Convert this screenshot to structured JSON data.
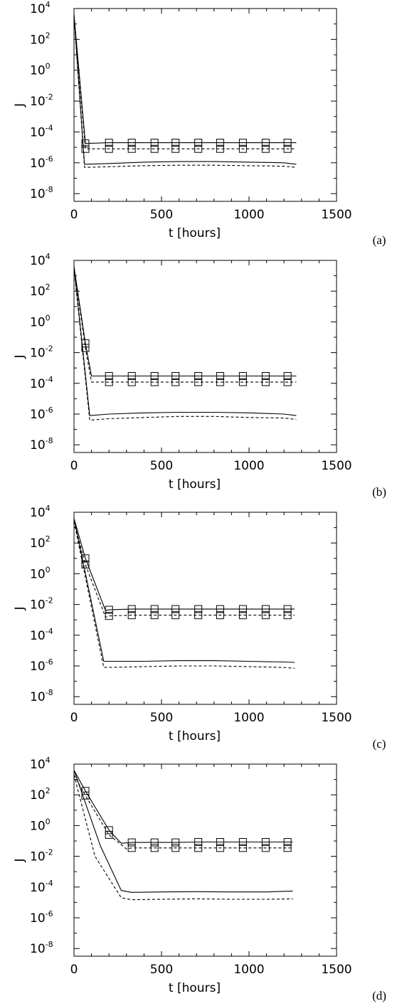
{
  "chart_data": [
    {
      "type": "line",
      "panel_label": "(a)",
      "xlabel": "t [hours]",
      "ylabel": "J",
      "xlim": [
        0,
        1500
      ],
      "ylim_log10": [
        -8.5,
        4
      ],
      "y_scale": "log",
      "xticks": [
        "0",
        "500",
        "1000",
        "1500"
      ],
      "yticks": [
        {
          "base": "10",
          "exp": "4"
        },
        {
          "base": "10",
          "exp": "2"
        },
        {
          "base": "10",
          "exp": "0"
        },
        {
          "base": "10",
          "exp": "-2"
        },
        {
          "base": "10",
          "exp": "-4"
        },
        {
          "base": "10",
          "exp": "-6"
        },
        {
          "base": "10",
          "exp": "-8"
        }
      ],
      "series": [
        {
          "style": "solid",
          "marker": "square",
          "x": [
            0,
            65,
            200,
            330,
            460,
            580,
            710,
            835,
            965,
            1095,
            1220,
            1270
          ],
          "y": [
            4000,
            1.8e-05,
            2e-05,
            2e-05,
            2e-05,
            2e-05,
            2e-05,
            2e-05,
            2e-05,
            2e-05,
            2e-05,
            2e-05
          ]
        },
        {
          "style": "dashed",
          "marker": "square",
          "x": [
            0,
            65,
            200,
            330,
            460,
            580,
            710,
            835,
            965,
            1095,
            1220,
            1270
          ],
          "y": [
            3000,
            8e-06,
            8e-06,
            8e-06,
            8e-06,
            8e-06,
            8e-06,
            8e-06,
            8e-06,
            8e-06,
            8e-06,
            8e-06
          ]
        },
        {
          "style": "solid",
          "marker": "none",
          "x": [
            0,
            60,
            200,
            400,
            600,
            800,
            1000,
            1200,
            1270
          ],
          "y": [
            4000,
            8e-07,
            9e-07,
            1.1e-06,
            1.2e-06,
            1.2e-06,
            1.1e-06,
            1e-06,
            8e-07
          ]
        },
        {
          "style": "dashed",
          "marker": "none",
          "x": [
            0,
            60,
            200,
            400,
            600,
            800,
            1000,
            1200,
            1270
          ],
          "y": [
            3000,
            5e-07,
            5.5e-07,
            6.5e-07,
            7e-07,
            7e-07,
            6.5e-07,
            6e-07,
            5e-07
          ]
        }
      ]
    },
    {
      "type": "line",
      "panel_label": "(b)",
      "xlabel": "t [hours]",
      "ylabel": "J",
      "xlim": [
        0,
        1500
      ],
      "ylim_log10": [
        -8.5,
        4
      ],
      "y_scale": "log",
      "xticks": [
        "0",
        "500",
        "1000",
        "1500"
      ],
      "yticks": [
        {
          "base": "10",
          "exp": "4"
        },
        {
          "base": "10",
          "exp": "2"
        },
        {
          "base": "10",
          "exp": "0"
        },
        {
          "base": "10",
          "exp": "-2"
        },
        {
          "base": "10",
          "exp": "-4"
        },
        {
          "base": "10",
          "exp": "-6"
        },
        {
          "base": "10",
          "exp": "-8"
        }
      ],
      "series": [
        {
          "style": "solid",
          "marker": "square",
          "x": [
            0,
            65,
            100,
            200,
            330,
            460,
            580,
            710,
            835,
            965,
            1095,
            1220,
            1270
          ],
          "y": [
            4000,
            0.04,
            0.0003,
            0.0003,
            0.0003,
            0.0003,
            0.0003,
            0.0003,
            0.0003,
            0.0003,
            0.0003,
            0.0003,
            0.0003
          ]
        },
        {
          "style": "dashed",
          "marker": "square",
          "x": [
            0,
            65,
            100,
            200,
            330,
            460,
            580,
            710,
            835,
            965,
            1095,
            1220,
            1270
          ],
          "y": [
            3000,
            0.02,
            0.00012,
            0.00012,
            0.00012,
            0.00012,
            0.00012,
            0.00012,
            0.00012,
            0.00012,
            0.00012,
            0.00012,
            0.00012
          ]
        },
        {
          "style": "solid",
          "marker": "none",
          "x": [
            0,
            90,
            200,
            400,
            600,
            800,
            1000,
            1200,
            1270
          ],
          "y": [
            4000,
            8e-07,
            1e-06,
            1.2e-06,
            1.3e-06,
            1.3e-06,
            1.2e-06,
            1e-06,
            8e-07
          ]
        },
        {
          "style": "dashed",
          "marker": "none",
          "x": [
            0,
            90,
            200,
            400,
            600,
            800,
            1000,
            1200,
            1270
          ],
          "y": [
            3000,
            4e-07,
            5e-07,
            6e-07,
            7e-07,
            7e-07,
            6e-07,
            5.5e-07,
            4.5e-07
          ]
        }
      ]
    },
    {
      "type": "line",
      "panel_label": "(c)",
      "xlabel": "t [hours]",
      "ylabel": "J",
      "xlim": [
        0,
        1500
      ],
      "ylim_log10": [
        -8.5,
        4
      ],
      "y_scale": "log",
      "xticks": [
        "0",
        "500",
        "1000",
        "1500"
      ],
      "yticks": [
        {
          "base": "10",
          "exp": "4"
        },
        {
          "base": "10",
          "exp": "2"
        },
        {
          "base": "10",
          "exp": "0"
        },
        {
          "base": "10",
          "exp": "-2"
        },
        {
          "base": "10",
          "exp": "-4"
        },
        {
          "base": "10",
          "exp": "-6"
        },
        {
          "base": "10",
          "exp": "-8"
        }
      ],
      "series": [
        {
          "style": "solid",
          "marker": "square",
          "x": [
            0,
            65,
            180,
            200,
            330,
            460,
            580,
            710,
            835,
            965,
            1095,
            1220,
            1260
          ],
          "y": [
            4000,
            10,
            0.004,
            0.0045,
            0.005,
            0.005,
            0.005,
            0.005,
            0.005,
            0.005,
            0.005,
            0.005,
            0.005
          ]
        },
        {
          "style": "dashed",
          "marker": "square",
          "x": [
            0,
            65,
            180,
            200,
            330,
            460,
            580,
            710,
            835,
            965,
            1095,
            1220,
            1260
          ],
          "y": [
            2500,
            4,
            0.0015,
            0.0018,
            0.002,
            0.002,
            0.002,
            0.002,
            0.002,
            0.002,
            0.002,
            0.002,
            0.002
          ]
        },
        {
          "style": "solid",
          "marker": "none",
          "x": [
            0,
            170,
            200,
            400,
            600,
            800,
            1000,
            1200,
            1260
          ],
          "y": [
            4000,
            2e-06,
            2e-06,
            2e-06,
            2.2e-06,
            2.2e-06,
            2e-06,
            1.8e-06,
            1.7e-06
          ]
        },
        {
          "style": "dashed",
          "marker": "none",
          "x": [
            0,
            170,
            200,
            400,
            600,
            800,
            1000,
            1200,
            1260
          ],
          "y": [
            2500,
            8e-07,
            8e-07,
            9e-07,
            1e-06,
            1e-06,
            9e-07,
            8e-07,
            7e-07
          ]
        }
      ]
    },
    {
      "type": "line",
      "panel_label": "(d)",
      "xlabel": "t [hours]",
      "ylabel": "J",
      "xlim": [
        0,
        1500
      ],
      "ylim_log10": [
        -8.5,
        4
      ],
      "y_scale": "log",
      "xticks": [
        "0",
        "500",
        "1000",
        "1500"
      ],
      "yticks": [
        {
          "base": "10",
          "exp": "4"
        },
        {
          "base": "10",
          "exp": "2"
        },
        {
          "base": "10",
          "exp": "0"
        },
        {
          "base": "10",
          "exp": "-2"
        },
        {
          "base": "10",
          "exp": "-4"
        },
        {
          "base": "10",
          "exp": "-6"
        },
        {
          "base": "10",
          "exp": "-8"
        }
      ],
      "series": [
        {
          "style": "solid",
          "marker": "square",
          "x": [
            0,
            65,
            200,
            270,
            330,
            460,
            580,
            710,
            835,
            965,
            1095,
            1220,
            1250
          ],
          "y": [
            4000,
            180,
            0.5,
            0.07,
            0.08,
            0.08,
            0.08,
            0.085,
            0.085,
            0.085,
            0.085,
            0.085,
            0.085
          ]
        },
        {
          "style": "dashed",
          "marker": "square",
          "x": [
            0,
            65,
            200,
            300,
            330,
            460,
            580,
            710,
            835,
            965,
            1095,
            1220,
            1250
          ],
          "y": [
            2000,
            90,
            0.25,
            0.03,
            0.035,
            0.035,
            0.035,
            0.035,
            0.035,
            0.035,
            0.035,
            0.035,
            0.035
          ]
        },
        {
          "style": "solid",
          "marker": "none",
          "x": [
            0,
            150,
            270,
            330,
            500,
            700,
            900,
            1100,
            1250
          ],
          "y": [
            4000,
            0.05,
            6e-05,
            4.5e-05,
            4.8e-05,
            5e-05,
            4.8e-05,
            4.8e-05,
            5.5e-05
          ]
        },
        {
          "style": "dashed",
          "marker": "none",
          "x": [
            0,
            120,
            270,
            330,
            500,
            700,
            900,
            1100,
            1250
          ],
          "y": [
            2000,
            0.01,
            2e-05,
            1.5e-05,
            1.6e-05,
            1.7e-05,
            1.6e-05,
            1.6e-05,
            1.7e-05
          ]
        }
      ]
    }
  ]
}
